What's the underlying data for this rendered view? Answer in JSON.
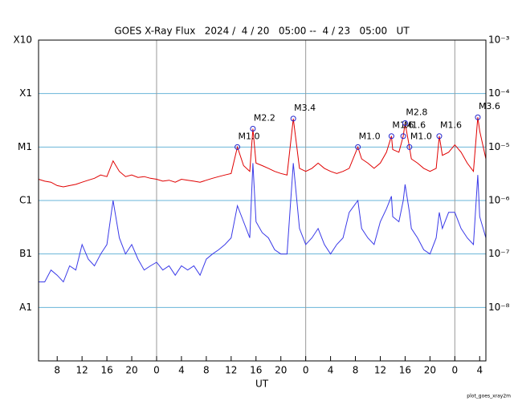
{
  "chart_data": {
    "type": "line",
    "title": "GOES X-Ray Flux   2024 /  4 / 20   05:00 --  4 / 23   05:00   UT",
    "xlabel": "UT",
    "footer": "plot_goes_xray2m",
    "log_y": true,
    "xlim": [
      0,
      72
    ],
    "xticks": [
      {
        "value": 3,
        "label": "8"
      },
      {
        "value": 7,
        "label": "12"
      },
      {
        "value": 11,
        "label": "16"
      },
      {
        "value": 15,
        "label": "20"
      },
      {
        "value": 19,
        "label": "0"
      },
      {
        "value": 23,
        "label": "4"
      },
      {
        "value": 27,
        "label": "8"
      },
      {
        "value": 31,
        "label": "12"
      },
      {
        "value": 35,
        "label": "16"
      },
      {
        "value": 39,
        "label": "20"
      },
      {
        "value": 43,
        "label": "0"
      },
      {
        "value": 47,
        "label": "4"
      },
      {
        "value": 51,
        "label": "8"
      },
      {
        "value": 55,
        "label": "12"
      },
      {
        "value": 59,
        "label": "16"
      },
      {
        "value": 63,
        "label": "20"
      },
      {
        "value": 67,
        "label": "0"
      },
      {
        "value": 71,
        "label": "4"
      }
    ],
    "day_lines": [
      19,
      43,
      67
    ],
    "ylim": [
      1e-09,
      0.001
    ],
    "yticks": [
      {
        "value": 0.001,
        "label": "10⁻³"
      },
      {
        "value": 0.0001,
        "label": "10⁻⁴"
      },
      {
        "value": 1e-05,
        "label": "10⁻⁵"
      },
      {
        "value": 1e-06,
        "label": "10⁻⁶"
      },
      {
        "value": 1e-07,
        "label": "10⁻⁷"
      },
      {
        "value": 1e-08,
        "label": "10⁻⁸"
      }
    ],
    "class_ticks": [
      {
        "value": 0.001,
        "label": "X10"
      },
      {
        "value": 0.0001,
        "label": "X1"
      },
      {
        "value": 1e-05,
        "label": "M1"
      },
      {
        "value": 1e-06,
        "label": "C1"
      },
      {
        "value": 1e-07,
        "label": "B1"
      },
      {
        "value": 1e-08,
        "label": "A1"
      }
    ],
    "grid": true,
    "grid_color": "#6ab4d8",
    "x": [
      0,
      1,
      2,
      3,
      4,
      5,
      6,
      7,
      8,
      9,
      10,
      11,
      12,
      13,
      14,
      15,
      16,
      17,
      18,
      19,
      20,
      21,
      22,
      23,
      24,
      25,
      26,
      27,
      28,
      29,
      30,
      31,
      32,
      33,
      34,
      34.5,
      35,
      36,
      37,
      38,
      39,
      40,
      41,
      42,
      43,
      44,
      45,
      46,
      47,
      48,
      49,
      50,
      51.4,
      52,
      53,
      54,
      55,
      56,
      56.8,
      57,
      58,
      58.7,
      59,
      59.7,
      60,
      61,
      62,
      63,
      64,
      64.5,
      65,
      66,
      67,
      68,
      69,
      70,
      70.7,
      71,
      72
    ],
    "series": [
      {
        "color": "#e00000",
        "values": [
          2.5e-06,
          2.3e-06,
          2.2e-06,
          1.9e-06,
          1.8e-06,
          1.9e-06,
          2e-06,
          2.2e-06,
          2.4e-06,
          2.6e-06,
          3e-06,
          2.8e-06,
          5.5e-06,
          3.5e-06,
          2.8e-06,
          3e-06,
          2.7e-06,
          2.8e-06,
          2.6e-06,
          2.5e-06,
          2.3e-06,
          2.4e-06,
          2.2e-06,
          2.5e-06,
          2.4e-06,
          2.3e-06,
          2.2e-06,
          2.4e-06,
          2.6e-06,
          2.8e-06,
          3e-06,
          3.2e-06,
          1e-05,
          4.5e-06,
          3.5e-06,
          2.2e-05,
          5e-06,
          4.5e-06,
          4e-06,
          3.5e-06,
          3.2e-06,
          3e-06,
          3.4e-05,
          4e-06,
          3.5e-06,
          4e-06,
          5e-06,
          4e-06,
          3.5e-06,
          3.2e-06,
          3.5e-06,
          4e-06,
          1e-05,
          6e-06,
          5e-06,
          4e-06,
          5e-06,
          8e-06,
          1.6e-05,
          9e-06,
          8e-06,
          1.6e-05,
          2.8e-05,
          1e-05,
          6e-06,
          5e-06,
          4e-06,
          3.5e-06,
          4e-06,
          1.6e-05,
          7e-06,
          8e-06,
          1.1e-05,
          8e-06,
          5e-06,
          3.5e-06,
          3.6e-05,
          2e-05,
          6e-06
        ]
      },
      {
        "color": "#3a3ae8",
        "values": [
          3e-08,
          3e-08,
          5e-08,
          4e-08,
          3e-08,
          6e-08,
          5e-08,
          1.5e-07,
          8e-08,
          6e-08,
          1e-07,
          1.5e-07,
          1e-06,
          2e-07,
          1e-07,
          1.5e-07,
          8e-08,
          5e-08,
          6e-08,
          7e-08,
          5e-08,
          6e-08,
          4e-08,
          6e-08,
          5e-08,
          6e-08,
          4e-08,
          8e-08,
          1e-07,
          1.2e-07,
          1.5e-07,
          2e-07,
          8e-07,
          4e-07,
          2e-07,
          5e-06,
          4e-07,
          2.5e-07,
          2e-07,
          1.2e-07,
          1e-07,
          1e-07,
          5e-06,
          3e-07,
          1.5e-07,
          2e-07,
          3e-07,
          1.5e-07,
          1e-07,
          1.5e-07,
          2e-07,
          6e-07,
          1e-06,
          3e-07,
          2e-07,
          1.5e-07,
          4e-07,
          7e-07,
          1.2e-06,
          5e-07,
          4e-07,
          1e-06,
          2e-06,
          6e-07,
          3e-07,
          2e-07,
          1.2e-07,
          1e-07,
          2e-07,
          6e-07,
          3e-07,
          6e-07,
          6e-07,
          3e-07,
          2e-07,
          1.5e-07,
          3e-06,
          5e-07,
          2e-07
        ]
      }
    ],
    "annotations": [
      {
        "x": 32.0,
        "value": 1e-05,
        "label": "M1.0"
      },
      {
        "x": 34.5,
        "value": 2.2e-05,
        "label": "M2.2"
      },
      {
        "x": 41.0,
        "value": 3.4e-05,
        "label": "M3.4"
      },
      {
        "x": 51.4,
        "value": 1e-05,
        "label": "M1.0"
      },
      {
        "x": 56.8,
        "value": 1.6e-05,
        "label": "M1.6"
      },
      {
        "x": 58.7,
        "value": 1.6e-05,
        "label": "M1.6"
      },
      {
        "x": 59.0,
        "value": 2.8e-05,
        "label": "M2.8"
      },
      {
        "x": 59.7,
        "value": 1e-05,
        "label": "M1.0"
      },
      {
        "x": 64.5,
        "value": 1.6e-05,
        "label": "M1.6"
      },
      {
        "x": 70.7,
        "value": 3.6e-05,
        "label": "M3.6"
      }
    ]
  }
}
